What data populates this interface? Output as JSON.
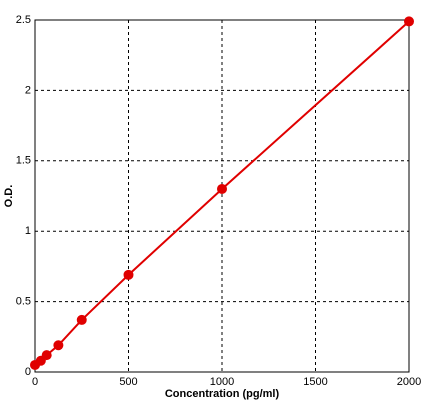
{
  "chart_data": {
    "type": "scatter",
    "x_label": "Concentration (pg/ml)",
    "y_label": "O.D.",
    "x": [
      0,
      31.25,
      62.5,
      125,
      250,
      500,
      1000,
      2000
    ],
    "values": [
      0.05,
      0.08,
      0.12,
      0.19,
      0.37,
      0.69,
      1.3,
      2.49
    ],
    "color": "#e00000",
    "connect": true,
    "xlim": [
      0,
      2000
    ],
    "xticks": [
      0,
      500,
      1000,
      1500,
      2000
    ],
    "ylim": [
      0,
      2.5
    ],
    "yticks": [
      0,
      0.5,
      1,
      1.5,
      2,
      2.5
    ],
    "grid": true
  }
}
